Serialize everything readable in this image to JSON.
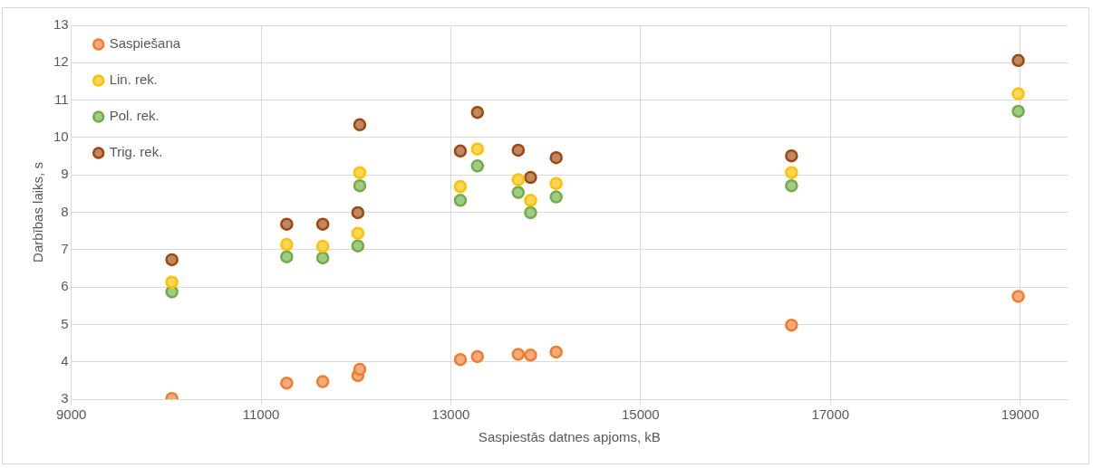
{
  "chart_data": {
    "type": "scatter",
    "xlabel": "Saspiestās datnes apjoms, kB",
    "ylabel": "Darbības laiks, s",
    "x": [
      10060,
      11270,
      11650,
      12020,
      12040,
      13100,
      13280,
      13710,
      13840,
      14110,
      16590,
      18980
    ],
    "series": [
      {
        "name": "Saspiešana",
        "color": "#ed7d31",
        "values": [
          3.02,
          3.43,
          3.47,
          3.63,
          3.8,
          4.06,
          4.14,
          4.2,
          4.18,
          4.26,
          4.98,
          5.75
        ]
      },
      {
        "name": "Lin. rek.",
        "color": "#ffc000",
        "values": [
          6.13,
          7.14,
          7.09,
          7.44,
          9.06,
          8.69,
          9.69,
          8.87,
          8.32,
          8.77,
          9.06,
          11.17
        ]
      },
      {
        "name": "Pol. rek.",
        "color": "#70ad47",
        "values": [
          5.87,
          6.81,
          6.78,
          7.1,
          8.71,
          8.32,
          9.24,
          8.53,
          7.99,
          8.41,
          8.71,
          10.7
        ]
      },
      {
        "name": "Trig. rek.",
        "color": "#9e480e",
        "values": [
          6.73,
          7.68,
          7.68,
          7.99,
          10.34,
          9.64,
          10.67,
          9.66,
          8.93,
          9.46,
          9.51,
          12.06
        ]
      }
    ],
    "xlim": [
      9000,
      19500
    ],
    "xticks": [
      9000,
      11000,
      13000,
      15000,
      17000,
      19000
    ],
    "ylim": [
      3,
      13
    ],
    "yticks": [
      3,
      4,
      5,
      6,
      7,
      8,
      9,
      10,
      11,
      12,
      13
    ],
    "grid": true,
    "legend": "top left",
    "marker": "circle"
  }
}
